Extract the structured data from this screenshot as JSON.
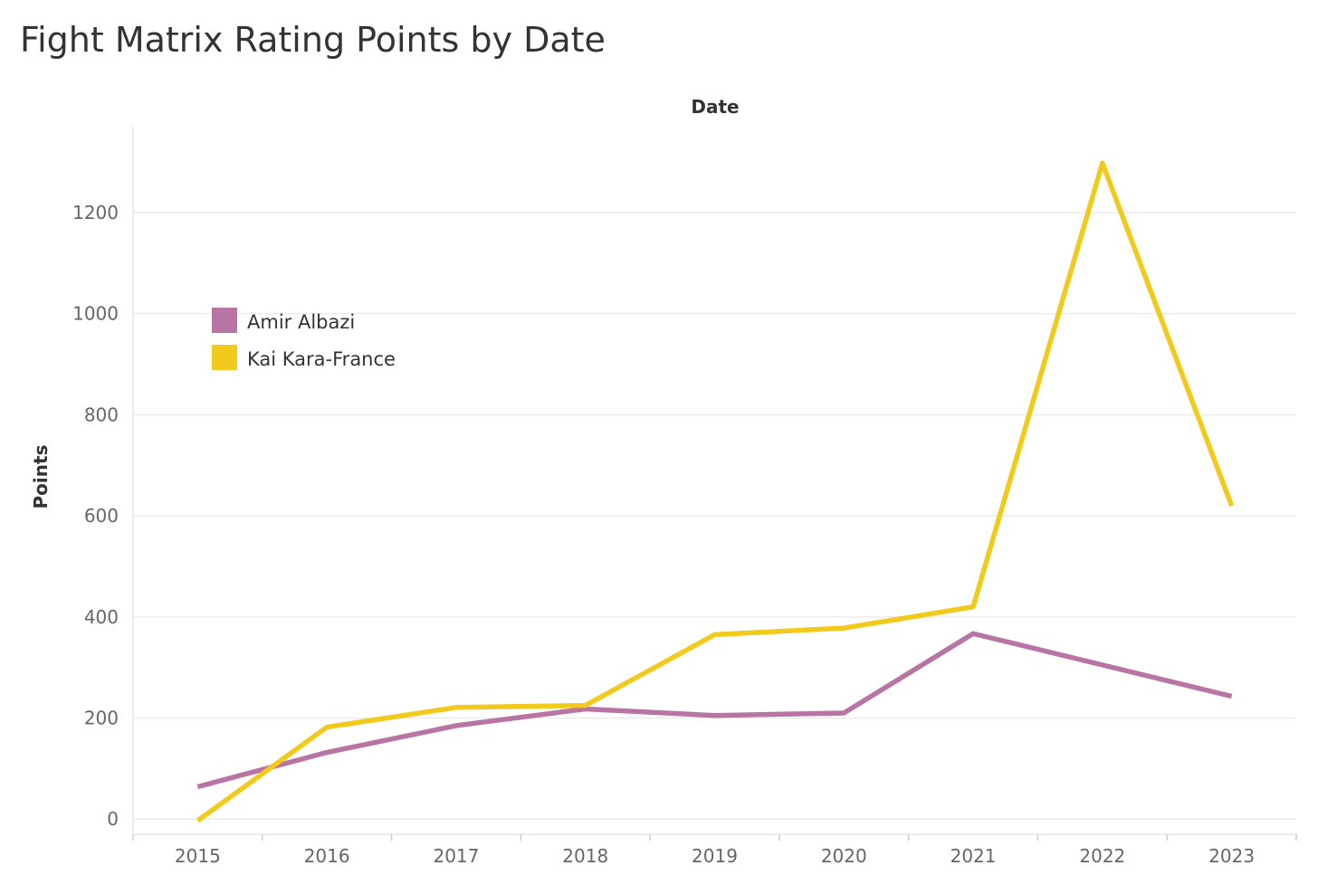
{
  "chart_data": {
    "type": "line",
    "title": "Fight Matrix Rating Points by Date",
    "xlabel": "Date",
    "ylabel": "Points",
    "x": [
      "2015",
      "2016",
      "2017",
      "2018",
      "2019",
      "2020",
      "2021",
      "2022",
      "2023"
    ],
    "yticks": [
      0,
      200,
      400,
      600,
      800,
      1000,
      1200
    ],
    "ylim": [
      -30,
      1370
    ],
    "grid": true,
    "legend_position": "top-left",
    "series": [
      {
        "name": "Amir Albazi",
        "color": "#b875a4",
        "values": [
          64,
          132,
          185,
          218,
          205,
          210,
          367,
          305,
          243
        ]
      },
      {
        "name": "Kai Kara-France",
        "color": "#f2ca1d",
        "values": [
          -3,
          182,
          221,
          225,
          365,
          378,
          420,
          1298,
          620
        ]
      }
    ]
  }
}
